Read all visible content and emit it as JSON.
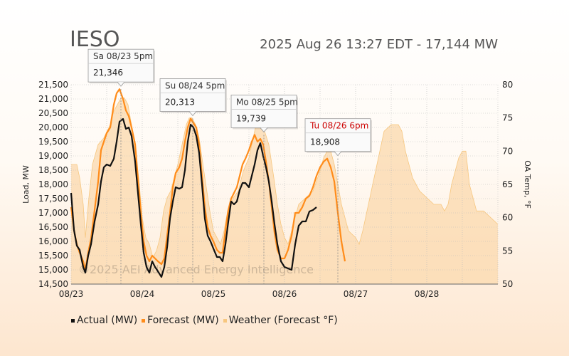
{
  "header": {
    "title": "IESO",
    "subtitle": "2025 Aug 26 13:27 EDT - 17,144 MW"
  },
  "watermark": "©2025  AEI  Advanced Energy Intelligence",
  "colors": {
    "actual": "#111111",
    "forecast": "#ff8c1a",
    "weather_fill": "#fbdcb4",
    "weather_line": "#f7c77f",
    "gridline": "#bbbbbb",
    "peak_red": "#cc0000"
  },
  "chart_data": {
    "type": "line",
    "xlim": [
      0,
      6
    ],
    "ylim": [
      14500,
      21500
    ],
    "y2lim": [
      50,
      80
    ],
    "ylabel": "Load, MW",
    "y2label": "OA Temp, °F",
    "x_ticks": [
      "08/23",
      "08/24",
      "08/25",
      "08/26",
      "08/27",
      "08/28"
    ],
    "y_ticks": [
      14500,
      15000,
      15500,
      16000,
      16500,
      17000,
      17500,
      18000,
      18500,
      19000,
      19500,
      20000,
      20500,
      21000,
      21500
    ],
    "y_tick_labels": [
      "14,500",
      "15,000",
      "15,500",
      "16,000",
      "16,500",
      "17,000",
      "17,500",
      "18,000",
      "18,500",
      "19,000",
      "19,500",
      "20,000",
      "20,500",
      "21,000",
      "21,500"
    ],
    "y2_ticks": [
      50,
      55,
      60,
      65,
      70,
      75,
      80
    ],
    "series": [
      {
        "name": "Actual (MW)",
        "points": [
          [
            0.0,
            17700
          ],
          [
            0.04,
            16400
          ],
          [
            0.08,
            15850
          ],
          [
            0.12,
            15700
          ],
          [
            0.17,
            15100
          ],
          [
            0.2,
            14900
          ],
          [
            0.24,
            15500
          ],
          [
            0.28,
            15900
          ],
          [
            0.33,
            16700
          ],
          [
            0.38,
            17300
          ],
          [
            0.42,
            18100
          ],
          [
            0.46,
            18600
          ],
          [
            0.5,
            18700
          ],
          [
            0.55,
            18650
          ],
          [
            0.6,
            18900
          ],
          [
            0.64,
            19500
          ],
          [
            0.68,
            20200
          ],
          [
            0.73,
            20300
          ],
          [
            0.77,
            19950
          ],
          [
            0.81,
            20000
          ],
          [
            0.85,
            19700
          ],
          [
            0.9,
            18800
          ],
          [
            0.94,
            17700
          ],
          [
            0.98,
            16600
          ],
          [
            1.02,
            15600
          ],
          [
            1.06,
            15100
          ],
          [
            1.1,
            14900
          ],
          [
            1.14,
            15300
          ],
          [
            1.18,
            15100
          ],
          [
            1.22,
            14950
          ],
          [
            1.27,
            14750
          ],
          [
            1.31,
            15100
          ],
          [
            1.35,
            15800
          ],
          [
            1.39,
            16800
          ],
          [
            1.43,
            17400
          ],
          [
            1.47,
            17900
          ],
          [
            1.52,
            17850
          ],
          [
            1.56,
            17900
          ],
          [
            1.6,
            18500
          ],
          [
            1.64,
            19500
          ],
          [
            1.68,
            20100
          ],
          [
            1.72,
            20000
          ],
          [
            1.76,
            19700
          ],
          [
            1.8,
            19100
          ],
          [
            1.84,
            18000
          ],
          [
            1.88,
            16800
          ],
          [
            1.92,
            16200
          ],
          [
            1.96,
            16000
          ],
          [
            2.0,
            15750
          ],
          [
            2.05,
            15450
          ],
          [
            2.09,
            15450
          ],
          [
            2.13,
            15300
          ],
          [
            2.17,
            15900
          ],
          [
            2.21,
            16700
          ],
          [
            2.25,
            17400
          ],
          [
            2.29,
            17300
          ],
          [
            2.33,
            17400
          ],
          [
            2.37,
            17800
          ],
          [
            2.41,
            18050
          ],
          [
            2.45,
            18050
          ],
          [
            2.5,
            17900
          ],
          [
            2.54,
            18300
          ],
          [
            2.58,
            18700
          ],
          [
            2.62,
            19200
          ],
          [
            2.66,
            19450
          ],
          [
            2.7,
            19000
          ],
          [
            2.74,
            18600
          ],
          [
            2.78,
            18100
          ],
          [
            2.82,
            17400
          ],
          [
            2.86,
            16600
          ],
          [
            2.9,
            15900
          ],
          [
            2.95,
            15300
          ],
          [
            3.0,
            15100
          ],
          [
            3.05,
            15050
          ],
          [
            3.1,
            15000
          ],
          [
            3.15,
            15900
          ],
          [
            3.2,
            16550
          ],
          [
            3.25,
            16700
          ],
          [
            3.3,
            16700
          ],
          [
            3.35,
            17050
          ],
          [
            3.4,
            17100
          ],
          [
            3.45,
            17200
          ]
        ]
      },
      {
        "name": "Forecast (MW)",
        "points": [
          [
            0.0,
            17200
          ],
          [
            0.04,
            16400
          ],
          [
            0.08,
            15900
          ],
          [
            0.12,
            15600
          ],
          [
            0.17,
            15300
          ],
          [
            0.2,
            15000
          ],
          [
            0.24,
            15600
          ],
          [
            0.28,
            16100
          ],
          [
            0.33,
            17100
          ],
          [
            0.38,
            18100
          ],
          [
            0.42,
            19200
          ],
          [
            0.46,
            19500
          ],
          [
            0.5,
            19800
          ],
          [
            0.55,
            20000
          ],
          [
            0.6,
            20800
          ],
          [
            0.64,
            21200
          ],
          [
            0.68,
            21346
          ],
          [
            0.73,
            21000
          ],
          [
            0.77,
            20600
          ],
          [
            0.81,
            20400
          ],
          [
            0.85,
            20000
          ],
          [
            0.9,
            19400
          ],
          [
            0.94,
            18200
          ],
          [
            0.98,
            17000
          ],
          [
            1.02,
            16000
          ],
          [
            1.06,
            15500
          ],
          [
            1.1,
            15300
          ],
          [
            1.14,
            15500
          ],
          [
            1.18,
            15400
          ],
          [
            1.22,
            15300
          ],
          [
            1.27,
            15200
          ],
          [
            1.31,
            15400
          ],
          [
            1.35,
            16200
          ],
          [
            1.39,
            17000
          ],
          [
            1.43,
            17900
          ],
          [
            1.47,
            18400
          ],
          [
            1.52,
            18600
          ],
          [
            1.56,
            18900
          ],
          [
            1.6,
            19500
          ],
          [
            1.64,
            20000
          ],
          [
            1.68,
            20313
          ],
          [
            1.72,
            20150
          ],
          [
            1.76,
            20000
          ],
          [
            1.8,
            19400
          ],
          [
            1.84,
            18300
          ],
          [
            1.88,
            17200
          ],
          [
            1.92,
            16500
          ],
          [
            1.96,
            16200
          ],
          [
            2.0,
            16000
          ],
          [
            2.05,
            15700
          ],
          [
            2.09,
            15600
          ],
          [
            2.13,
            15600
          ],
          [
            2.17,
            16400
          ],
          [
            2.21,
            17100
          ],
          [
            2.25,
            17500
          ],
          [
            2.29,
            17700
          ],
          [
            2.33,
            17900
          ],
          [
            2.37,
            18300
          ],
          [
            2.41,
            18700
          ],
          [
            2.45,
            18900
          ],
          [
            2.5,
            19200
          ],
          [
            2.54,
            19500
          ],
          [
            2.58,
            19739
          ],
          [
            2.62,
            19500
          ],
          [
            2.66,
            19600
          ],
          [
            2.7,
            19400
          ],
          [
            2.74,
            18800
          ],
          [
            2.78,
            18100
          ],
          [
            2.82,
            17200
          ],
          [
            2.86,
            16300
          ],
          [
            2.9,
            15700
          ],
          [
            2.95,
            15400
          ],
          [
            3.0,
            15400
          ],
          [
            3.05,
            15700
          ],
          [
            3.1,
            16200
          ],
          [
            3.15,
            17000
          ],
          [
            3.2,
            17000
          ],
          [
            3.25,
            17200
          ],
          [
            3.3,
            17500
          ],
          [
            3.35,
            17600
          ],
          [
            3.4,
            17900
          ],
          [
            3.45,
            18300
          ],
          [
            3.5,
            18600
          ],
          [
            3.55,
            18800
          ],
          [
            3.6,
            18908
          ],
          [
            3.65,
            18600
          ],
          [
            3.7,
            18100
          ],
          [
            3.75,
            17000
          ],
          [
            3.8,
            16000
          ],
          [
            3.85,
            15300
          ]
        ]
      },
      {
        "name": "Weather (Forecast °F)",
        "axis": "y2",
        "points": [
          [
            0.0,
            68
          ],
          [
            0.08,
            68
          ],
          [
            0.12,
            66
          ],
          [
            0.17,
            62
          ],
          [
            0.2,
            57
          ],
          [
            0.25,
            63
          ],
          [
            0.3,
            68
          ],
          [
            0.38,
            71
          ],
          [
            0.46,
            72
          ],
          [
            0.55,
            74
          ],
          [
            0.6,
            76
          ],
          [
            0.65,
            77
          ],
          [
            0.7,
            78
          ],
          [
            0.75,
            78
          ],
          [
            0.8,
            77
          ],
          [
            0.88,
            72
          ],
          [
            0.95,
            66
          ],
          [
            1.0,
            60
          ],
          [
            1.05,
            57
          ],
          [
            1.1,
            56
          ],
          [
            1.15,
            54
          ],
          [
            1.2,
            55
          ],
          [
            1.25,
            57
          ],
          [
            1.3,
            61
          ],
          [
            1.35,
            63
          ],
          [
            1.4,
            64
          ],
          [
            1.45,
            66
          ],
          [
            1.5,
            68
          ],
          [
            1.58,
            72
          ],
          [
            1.62,
            74
          ],
          [
            1.66,
            75
          ],
          [
            1.7,
            75
          ],
          [
            1.75,
            74
          ],
          [
            1.8,
            72
          ],
          [
            1.88,
            66
          ],
          [
            1.95,
            61
          ],
          [
            2.0,
            58
          ],
          [
            2.05,
            57
          ],
          [
            2.1,
            56
          ],
          [
            2.15,
            58
          ],
          [
            2.2,
            61
          ],
          [
            2.28,
            63
          ],
          [
            2.35,
            64
          ],
          [
            2.42,
            67
          ],
          [
            2.5,
            69
          ],
          [
            2.56,
            72
          ],
          [
            2.6,
            74
          ],
          [
            2.66,
            74
          ],
          [
            2.72,
            73
          ],
          [
            2.78,
            71
          ],
          [
            2.85,
            66
          ],
          [
            2.9,
            62
          ],
          [
            2.95,
            59
          ],
          [
            3.0,
            57
          ],
          [
            3.05,
            56
          ],
          [
            3.1,
            58
          ],
          [
            3.15,
            60
          ],
          [
            3.2,
            62
          ],
          [
            3.3,
            63
          ],
          [
            3.4,
            64
          ],
          [
            3.5,
            67
          ],
          [
            3.55,
            69
          ],
          [
            3.6,
            70
          ],
          [
            3.65,
            70
          ],
          [
            3.7,
            68
          ],
          [
            3.75,
            65
          ],
          [
            3.8,
            62
          ],
          [
            3.85,
            60
          ],
          [
            3.9,
            58
          ],
          [
            4.0,
            57
          ],
          [
            4.05,
            56
          ],
          [
            4.1,
            58
          ],
          [
            4.2,
            63
          ],
          [
            4.3,
            68
          ],
          [
            4.4,
            73
          ],
          [
            4.5,
            74
          ],
          [
            4.6,
            74
          ],
          [
            4.65,
            73
          ],
          [
            4.7,
            70
          ],
          [
            4.8,
            66
          ],
          [
            4.9,
            64
          ],
          [
            5.0,
            63
          ],
          [
            5.1,
            62
          ],
          [
            5.2,
            62
          ],
          [
            5.25,
            61
          ],
          [
            5.3,
            62
          ],
          [
            5.35,
            65
          ],
          [
            5.45,
            69
          ],
          [
            5.5,
            70
          ],
          [
            5.55,
            70
          ],
          [
            5.6,
            65
          ],
          [
            5.7,
            61
          ],
          [
            5.8,
            61
          ],
          [
            5.9,
            60
          ],
          [
            6.0,
            59
          ]
        ]
      }
    ],
    "annotations": [
      {
        "label": "Sa 08/23 5pm",
        "value": "21,346",
        "x": 0.7,
        "y": 21346,
        "highlight": false
      },
      {
        "label": "Su 08/24 5pm",
        "value": "20,313",
        "x": 1.71,
        "y": 20313,
        "highlight": false
      },
      {
        "label": "Mo 08/25 5pm",
        "value": "19,739",
        "x": 2.71,
        "y": 19739,
        "highlight": false
      },
      {
        "label": "Tu 08/26 6pm",
        "value": "18,908",
        "x": 3.75,
        "y": 18908,
        "highlight": true
      }
    ],
    "grid": true,
    "legend_position": "bottom-left"
  }
}
